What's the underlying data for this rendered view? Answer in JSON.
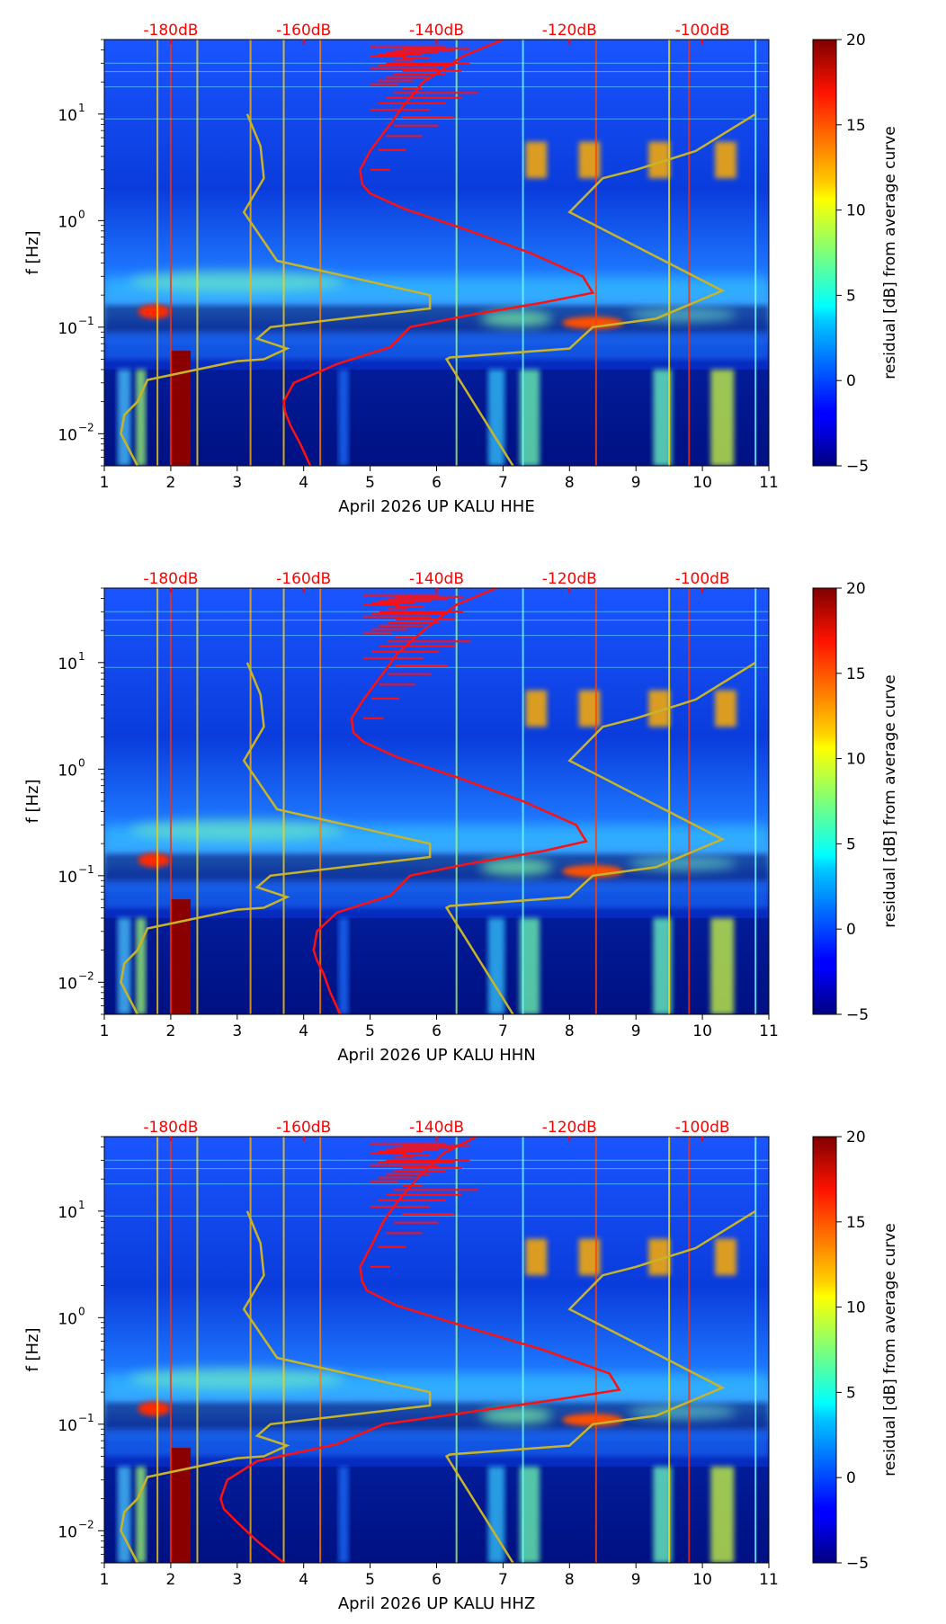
{
  "colors": {
    "median_curve": "#ff1010",
    "noise_model": "#c8b428",
    "db_labels": "#ff0000",
    "background_low": "#00007f",
    "background": "#0050ff"
  },
  "chart_data": [
    {
      "type": "heatmap",
      "title": "",
      "xlabel": "April 2026 UP KALU  HHE",
      "ylabel": "f [Hz]",
      "xlim": [
        1,
        11
      ],
      "ylim": [
        0.005,
        50
      ],
      "yscale": "log",
      "xticks": [
        "1",
        "2",
        "3",
        "4",
        "5",
        "6",
        "7",
        "8",
        "9",
        "10",
        "11"
      ],
      "yticks": [
        {
          "value": 0.01,
          "base": "10",
          "exp": "−2"
        },
        {
          "value": 0.1,
          "base": "10",
          "exp": "−1"
        },
        {
          "value": 1,
          "base": "10",
          "exp": "0"
        },
        {
          "value": 10,
          "base": "10",
          "exp": "1"
        }
      ],
      "db_axis": {
        "labels": [
          "-180dB",
          "-160dB",
          "-140dB",
          "-120dB",
          "-100dB"
        ],
        "x_positions": [
          2,
          4,
          6,
          8,
          10
        ]
      },
      "colorbar": {
        "label": "residual [dB] from average curve",
        "min": -5,
        "max": 20,
        "ticks": [
          "−5",
          "0",
          "5",
          "10",
          "15",
          "20"
        ]
      },
      "median_curve": {
        "x": [
          4.1,
          3.95,
          3.8,
          3.72,
          3.7,
          3.85,
          4.5,
          5.3,
          5.6,
          6.5,
          7.6,
          8.35,
          8.2,
          7.4,
          6.5,
          5.5,
          5.0,
          4.88,
          4.85,
          5.0,
          5.3,
          5.5,
          5.8,
          6.4,
          7.0
        ],
        "y": [
          0.005,
          0.008,
          0.012,
          0.016,
          0.02,
          0.03,
          0.045,
          0.065,
          0.1,
          0.13,
          0.17,
          0.21,
          0.3,
          0.5,
          0.8,
          1.3,
          1.8,
          2.2,
          3.0,
          4.5,
          8,
          12,
          20,
          35,
          50
        ]
      },
      "noise_model": {
        "low": {
          "x": [
            1.5,
            1.25,
            1.3,
            1.5,
            1.65,
            3.0,
            3.4,
            3.75,
            3.3,
            3.5,
            5.9,
            5.9,
            3.6,
            3.1,
            3.4,
            3.35,
            3.15
          ],
          "y": [
            0.005,
            0.01,
            0.015,
            0.02,
            0.032,
            0.048,
            0.05,
            0.063,
            0.078,
            0.1,
            0.15,
            0.2,
            0.42,
            1.2,
            2.5,
            5,
            10
          ]
        },
        "high": {
          "x": [
            7.15,
            6.15,
            6.2,
            8.0,
            8.35,
            9.3,
            10.3,
            8.0,
            8.5,
            9.0,
            9.9,
            10.8
          ],
          "y": [
            0.005,
            0.05,
            0.052,
            0.063,
            0.1,
            0.12,
            0.22,
            1.2,
            2.5,
            3.0,
            4.5,
            10
          ]
        }
      },
      "spectrogram_features": {
        "tremor_band_hz": [
          0.1,
          0.3
        ],
        "microseism_band_hz": [
          0.08,
          0.2
        ],
        "strong_events_day": [
          2.0,
          2.1,
          2.2,
          8.4,
          9.5,
          10.3
        ]
      }
    },
    {
      "type": "heatmap",
      "title": "",
      "xlabel": "April 2026 UP KALU  HHN",
      "ylabel": "f [Hz]",
      "xlim": [
        1,
        11
      ],
      "ylim": [
        0.005,
        50
      ],
      "yscale": "log",
      "xticks": [
        "1",
        "2",
        "3",
        "4",
        "5",
        "6",
        "7",
        "8",
        "9",
        "10",
        "11"
      ],
      "yticks": [
        {
          "value": 0.01,
          "base": "10",
          "exp": "−2"
        },
        {
          "value": 0.1,
          "base": "10",
          "exp": "−1"
        },
        {
          "value": 1,
          "base": "10",
          "exp": "0"
        },
        {
          "value": 10,
          "base": "10",
          "exp": "1"
        }
      ],
      "db_axis": {
        "labels": [
          "-180dB",
          "-160dB",
          "-140dB",
          "-120dB",
          "-100dB"
        ],
        "x_positions": [
          2,
          4,
          6,
          8,
          10
        ]
      },
      "colorbar": {
        "label": "residual [dB] from average curve",
        "min": -5,
        "max": 20,
        "ticks": [
          "−5",
          "0",
          "5",
          "10",
          "15",
          "20"
        ]
      },
      "median_curve": {
        "x": [
          4.55,
          4.4,
          4.3,
          4.2,
          4.15,
          4.2,
          4.5,
          5.3,
          5.6,
          6.5,
          7.6,
          8.25,
          8.1,
          7.3,
          6.4,
          5.4,
          4.9,
          4.75,
          4.72,
          4.9,
          5.2,
          5.4,
          5.8,
          6.3,
          6.9
        ],
        "y": [
          0.005,
          0.008,
          0.012,
          0.016,
          0.02,
          0.03,
          0.045,
          0.065,
          0.1,
          0.13,
          0.17,
          0.21,
          0.3,
          0.5,
          0.8,
          1.3,
          1.8,
          2.2,
          3.0,
          4.5,
          8,
          12,
          20,
          35,
          50
        ]
      },
      "noise_model": {
        "low": {
          "x": [
            1.5,
            1.25,
            1.3,
            1.5,
            1.65,
            3.0,
            3.4,
            3.75,
            3.3,
            3.5,
            5.9,
            5.9,
            3.6,
            3.1,
            3.4,
            3.35,
            3.15
          ],
          "y": [
            0.005,
            0.01,
            0.015,
            0.02,
            0.032,
            0.048,
            0.05,
            0.063,
            0.078,
            0.1,
            0.15,
            0.2,
            0.42,
            1.2,
            2.5,
            5,
            10
          ]
        },
        "high": {
          "x": [
            7.15,
            6.15,
            6.2,
            8.0,
            8.35,
            9.3,
            10.3,
            8.0,
            8.5,
            9.0,
            9.9,
            10.8
          ],
          "y": [
            0.005,
            0.05,
            0.052,
            0.063,
            0.1,
            0.12,
            0.22,
            1.2,
            2.5,
            3.0,
            4.5,
            10
          ]
        }
      },
      "spectrogram_features": {
        "tremor_band_hz": [
          0.1,
          0.3
        ],
        "microseism_band_hz": [
          0.08,
          0.2
        ],
        "strong_events_day": [
          2.0,
          2.1,
          2.2,
          8.4,
          9.5,
          10.3
        ]
      }
    },
    {
      "type": "heatmap",
      "title": "",
      "xlabel": "April 2026 UP KALU  HHZ",
      "ylabel": "f [Hz]",
      "xlim": [
        1,
        11
      ],
      "ylim": [
        0.005,
        50
      ],
      "yscale": "log",
      "xticks": [
        "1",
        "2",
        "3",
        "4",
        "5",
        "6",
        "7",
        "8",
        "9",
        "10",
        "11"
      ],
      "yticks": [
        {
          "value": 0.01,
          "base": "10",
          "exp": "−2"
        },
        {
          "value": 0.1,
          "base": "10",
          "exp": "−1"
        },
        {
          "value": 1,
          "base": "10",
          "exp": "0"
        },
        {
          "value": 10,
          "base": "10",
          "exp": "1"
        }
      ],
      "db_axis": {
        "labels": [
          "-180dB",
          "-160dB",
          "-140dB",
          "-120dB",
          "-100dB"
        ],
        "x_positions": [
          2,
          4,
          6,
          8,
          10
        ]
      },
      "colorbar": {
        "label": "residual [dB] from average curve",
        "min": -5,
        "max": 20,
        "ticks": [
          "−5",
          "0",
          "5",
          "10",
          "15",
          "20"
        ]
      },
      "median_curve": {
        "x": [
          3.7,
          3.3,
          3.0,
          2.8,
          2.75,
          2.85,
          3.3,
          4.5,
          5.2,
          6.5,
          7.8,
          8.75,
          8.6,
          7.6,
          6.5,
          5.4,
          4.95,
          4.88,
          4.85,
          5.0,
          5.2,
          5.4,
          5.7,
          6.1,
          6.6
        ],
        "y": [
          0.005,
          0.008,
          0.012,
          0.016,
          0.02,
          0.03,
          0.045,
          0.065,
          0.1,
          0.13,
          0.17,
          0.21,
          0.3,
          0.5,
          0.8,
          1.3,
          1.8,
          2.2,
          3.0,
          4.5,
          8,
          12,
          20,
          35,
          50
        ]
      },
      "noise_model": {
        "low": {
          "x": [
            1.5,
            1.25,
            1.3,
            1.5,
            1.65,
            3.0,
            3.4,
            3.75,
            3.3,
            3.5,
            5.9,
            5.9,
            3.6,
            3.1,
            3.4,
            3.35,
            3.15
          ],
          "y": [
            0.005,
            0.01,
            0.015,
            0.02,
            0.032,
            0.048,
            0.05,
            0.063,
            0.078,
            0.1,
            0.15,
            0.2,
            0.42,
            1.2,
            2.5,
            5,
            10
          ]
        },
        "high": {
          "x": [
            7.15,
            6.15,
            6.2,
            8.0,
            8.35,
            9.3,
            10.3,
            8.0,
            8.5,
            9.0,
            9.9,
            10.8
          ],
          "y": [
            0.005,
            0.05,
            0.052,
            0.063,
            0.1,
            0.12,
            0.22,
            1.2,
            2.5,
            3.0,
            4.5,
            10
          ]
        }
      },
      "spectrogram_features": {
        "tremor_band_hz": [
          0.1,
          0.3
        ],
        "microseism_band_hz": [
          0.08,
          0.2
        ],
        "strong_events_day": [
          2.0,
          2.1,
          2.2,
          8.4,
          9.5,
          10.3
        ]
      }
    }
  ]
}
